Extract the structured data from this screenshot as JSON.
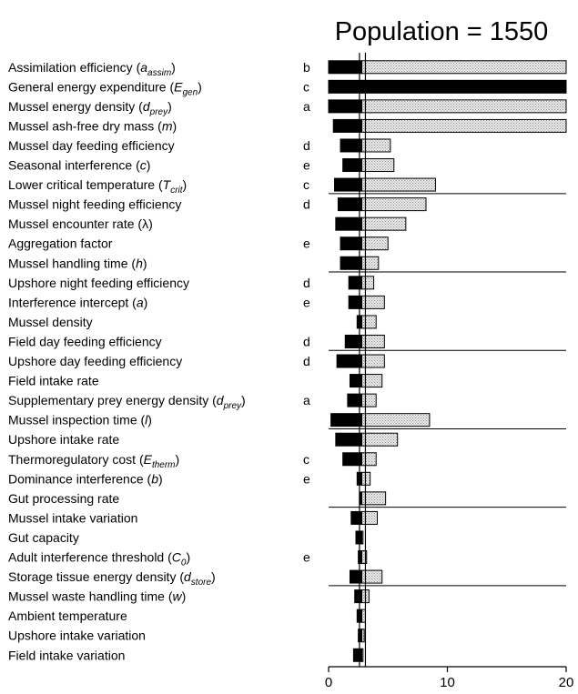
{
  "chart_data": {
    "type": "bar",
    "title": "Population = 1550",
    "xlim": [
      0,
      20
    ],
    "x_ticks": [
      0,
      10,
      20
    ],
    "baseline": 2.8,
    "reference_lines": [
      2.6,
      3.1
    ],
    "grid": false,
    "legend": "none",
    "colors": {
      "decrease": "#000000",
      "increase": "#d4d4d4",
      "stroke": "#000000"
    },
    "parameters": [
      {
        "label": "Assimilation efficiency (",
        "sym": "a",
        "sub": "assim",
        "close": ")",
        "group": "b",
        "decrease": 0.0,
        "increase": 20.0
      },
      {
        "label": "General energy expenditure (",
        "sym": "E",
        "sub": "gen",
        "close": ")",
        "group": "c",
        "decrease": 20.0,
        "increase": 0.0
      },
      {
        "label": "Mussel energy density (",
        "sym": "d",
        "sub": "prey",
        "close": ")",
        "group": "a",
        "decrease": 0.0,
        "increase": 20.0
      },
      {
        "label": "Mussel ash-free dry mass (",
        "sym": "m",
        "sub": "",
        "close": ")",
        "group": "",
        "decrease": 0.4,
        "increase": 20.0
      },
      {
        "label": "Mussel day feeding efficiency",
        "sym": "",
        "sub": "",
        "close": "",
        "group": "d",
        "decrease": 1.0,
        "increase": 5.2
      },
      {
        "label": "Seasonal interference (",
        "sym": "c",
        "sub": "",
        "close": ")",
        "group": "e",
        "decrease": 1.2,
        "increase": 5.5
      },
      {
        "label": "Lower critical temperature (",
        "sym": "T",
        "sub": "crit",
        "close": ")",
        "group": "c",
        "decrease": 0.5,
        "increase": 9.0
      },
      {
        "label": "Mussel night feeding efficiency",
        "sym": "",
        "sub": "",
        "close": "",
        "group": "d",
        "decrease": 0.8,
        "increase": 8.2
      },
      {
        "label": "Mussel encounter rate (λ)",
        "sym": "",
        "sub": "",
        "close": "",
        "group": "",
        "decrease": 0.6,
        "increase": 6.5
      },
      {
        "label": "Aggregation factor",
        "sym": "",
        "sub": "",
        "close": "",
        "group": "e",
        "decrease": 1.0,
        "increase": 5.0
      },
      {
        "label": "Mussel handling time (",
        "sym": "h",
        "sub": "",
        "close": ")",
        "group": "",
        "decrease": 1.0,
        "increase": 4.2
      },
      {
        "label": "Upshore night feeding efficiency",
        "sym": "",
        "sub": "",
        "close": "",
        "group": "d",
        "decrease": 1.7,
        "increase": 3.8
      },
      {
        "label": "Interference intercept (",
        "sym": "a",
        "sub": "",
        "close": ")",
        "group": "e",
        "decrease": 1.7,
        "increase": 4.7
      },
      {
        "label": "Mussel density",
        "sym": "",
        "sub": "",
        "close": "",
        "group": "",
        "decrease": 2.4,
        "increase": 4.0
      },
      {
        "label": "Field day feeding efficiency",
        "sym": "",
        "sub": "",
        "close": "",
        "group": "d",
        "decrease": 1.4,
        "increase": 4.7
      },
      {
        "label": "Upshore day feeding efficiency",
        "sym": "",
        "sub": "",
        "close": "",
        "group": "d",
        "decrease": 0.7,
        "increase": 4.7
      },
      {
        "label": "Field intake rate",
        "sym": "",
        "sub": "",
        "close": "",
        "group": "",
        "decrease": 1.8,
        "increase": 4.5
      },
      {
        "label": "Supplementary prey energy density (",
        "sym": "d",
        "sub": "prey",
        "close": ")",
        "group": "a",
        "decrease": 1.6,
        "increase": 4.0
      },
      {
        "label": "Mussel inspection time (",
        "sym": "l",
        "sub": "",
        "close": ")",
        "group": "",
        "decrease": 0.2,
        "increase": 8.5
      },
      {
        "label": "Upshore intake rate",
        "sym": "",
        "sub": "",
        "close": "",
        "group": "",
        "decrease": 0.6,
        "increase": 5.8
      },
      {
        "label": "Thermoregulatory cost (",
        "sym": "E",
        "sub": "therm",
        "close": ")",
        "group": "c",
        "decrease": 1.2,
        "increase": 4.0
      },
      {
        "label": "Dominance interference (",
        "sym": "b",
        "sub": "",
        "close": ")",
        "group": "e",
        "decrease": 2.4,
        "increase": 3.5
      },
      {
        "label": "Gut processing rate",
        "sym": "",
        "sub": "",
        "close": "",
        "group": "",
        "decrease": 2.6,
        "increase": 4.8
      },
      {
        "label": "Mussel intake variation",
        "sym": "",
        "sub": "",
        "close": "",
        "group": "",
        "decrease": 1.9,
        "increase": 4.1
      },
      {
        "label": "Gut capacity",
        "sym": "",
        "sub": "",
        "close": "",
        "group": "",
        "decrease": 2.3,
        "increase": 2.9
      },
      {
        "label": "Adult interference threshold (",
        "sym": "C",
        "sub": "0",
        "close": ")",
        "group": "e",
        "decrease": 2.5,
        "increase": 3.2
      },
      {
        "label": "Storage tissue energy density (",
        "sym": "d",
        "sub": "store",
        "close": ")",
        "group": "",
        "decrease": 1.8,
        "increase": 4.5
      },
      {
        "label": "Mussel waste handling time (",
        "sym": "w",
        "sub": "",
        "close": ")",
        "group": "",
        "decrease": 2.2,
        "increase": 3.4
      },
      {
        "label": "Ambient temperature",
        "sym": "",
        "sub": "",
        "close": "",
        "group": "",
        "decrease": 2.4,
        "increase": 3.1
      },
      {
        "label": "Upshore intake variation",
        "sym": "",
        "sub": "",
        "close": "",
        "group": "",
        "decrease": 2.5,
        "increase": 3.0
      },
      {
        "label": "Field intake variation",
        "sym": "",
        "sub": "",
        "close": "",
        "group": "",
        "decrease": 2.1,
        "increase": 2.9
      }
    ]
  }
}
